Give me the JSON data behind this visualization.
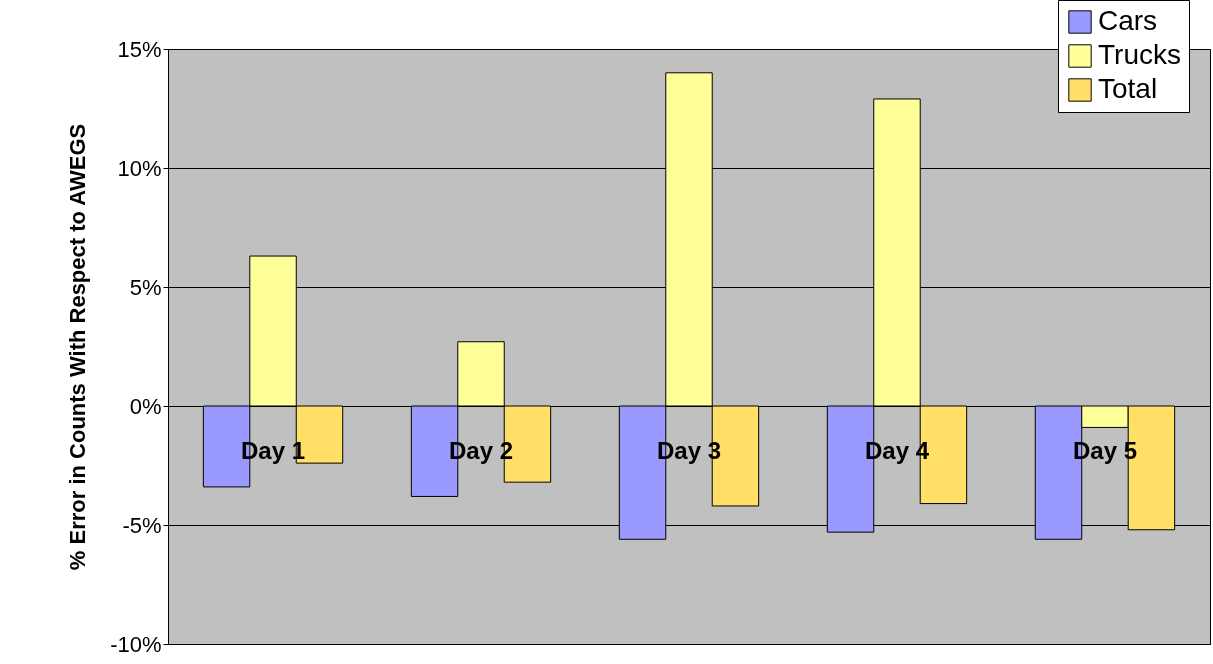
{
  "chart_data": {
    "type": "bar",
    "ylabel": "% Error in Counts With Respect to AWEGS",
    "categories": [
      "Day 1",
      "Day 2",
      "Day 3",
      "Day 4",
      "Day 5"
    ],
    "series": [
      {
        "name": "Cars",
        "color": "#9999ff",
        "values": [
          -3.4,
          -3.8,
          -5.6,
          -5.3,
          -5.6
        ]
      },
      {
        "name": "Trucks",
        "color": "#ffff99",
        "values": [
          6.3,
          2.7,
          14.0,
          12.9,
          -0.9
        ]
      },
      {
        "name": "Total",
        "color": "#ffdf66",
        "values": [
          -2.4,
          -3.2,
          -4.2,
          -4.1,
          -5.2
        ]
      }
    ],
    "ylim": [
      -10,
      15
    ],
    "yticks": [
      {
        "value": -10,
        "label": "-10%"
      },
      {
        "value": -5,
        "label": "-5%"
      },
      {
        "value": 0,
        "label": "0%"
      },
      {
        "value": 5,
        "label": "5%"
      },
      {
        "value": 10,
        "label": "10%"
      },
      {
        "value": 15,
        "label": "15%"
      }
    ],
    "grid": "y",
    "legend": "top right"
  }
}
